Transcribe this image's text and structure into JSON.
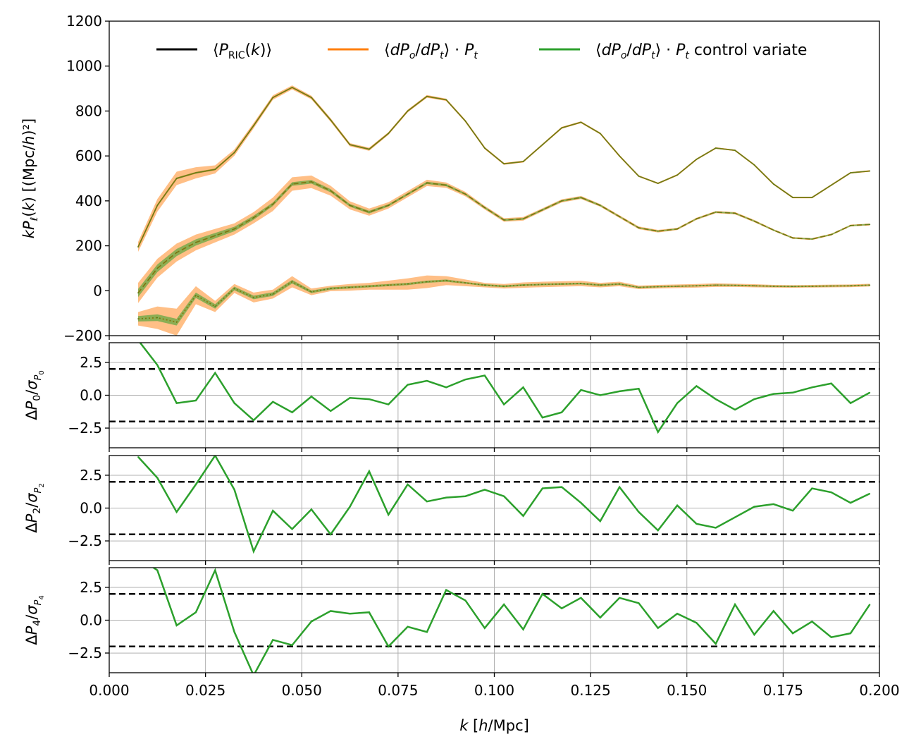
{
  "chart_data": [
    {
      "panel": "top",
      "type": "line",
      "ylabel_html": "kP<tspan font-style='italic' font-size='14' dy='4'>ℓ</tspan>",
      "ylabel": "kPℓ(k) [(Mpc/h)²]",
      "ylim": [
        -200,
        1200
      ],
      "yticks": [
        -200,
        0,
        200,
        400,
        600,
        800,
        1000,
        1200
      ],
      "xlim": [
        0.0,
        0.2
      ],
      "grid": false,
      "legend": {
        "location": "top",
        "entries": [
          {
            "label": "⟨P_RIC(k)⟩",
            "color": "#000000"
          },
          {
            "label": "⟨dP_o/dP_t⟩ · P_t",
            "color": "#ff7f0e"
          },
          {
            "label": "⟨dP_o/dP_t⟩ · P_t control variate",
            "color": "#2ca02c"
          }
        ]
      },
      "x": [
        0.0075,
        0.0125,
        0.0175,
        0.0225,
        0.0275,
        0.0325,
        0.0375,
        0.0425,
        0.0475,
        0.0525,
        0.0575,
        0.0625,
        0.0675,
        0.0725,
        0.0775,
        0.0825,
        0.0875,
        0.0925,
        0.0975,
        0.1025,
        0.1075,
        0.1125,
        0.1175,
        0.1225,
        0.1275,
        0.1325,
        0.1375,
        0.1425,
        0.1475,
        0.1525,
        0.1575,
        0.1625,
        0.1675,
        0.1725,
        0.1775,
        0.1825,
        0.1875,
        0.1925,
        0.1975
      ],
      "series": [
        {
          "name": "P0",
          "style": "solid",
          "values": [
            195,
            380,
            500,
            525,
            540,
            615,
            735,
            860,
            905,
            860,
            760,
            650,
            630,
            700,
            800,
            865,
            850,
            755,
            635,
            565,
            575,
            650,
            725,
            750,
            700,
            600,
            510,
            478,
            515,
            585,
            635,
            625,
            560,
            475,
            415,
            415,
            470,
            525,
            533
          ],
          "band_orange": [
            22,
            28,
            30,
            25,
            18,
            14,
            12,
            10,
            9,
            8,
            8,
            7,
            7,
            6,
            6,
            6,
            5,
            5,
            5,
            4,
            4,
            4,
            4,
            4,
            4,
            4,
            3,
            3,
            3,
            3,
            3,
            3,
            3,
            3,
            3,
            3,
            3,
            3,
            3
          ],
          "band_green": [
            5,
            5,
            4,
            4,
            4,
            3,
            3,
            3,
            3,
            3,
            3,
            3,
            3,
            3,
            3,
            2,
            2,
            2,
            2,
            2,
            2,
            2,
            2,
            2,
            2,
            2,
            2,
            2,
            2,
            2,
            2,
            2,
            2,
            2,
            2,
            2,
            2,
            2,
            2
          ]
        },
        {
          "name": "P2",
          "style": "dashed",
          "values": [
            -10,
            100,
            170,
            215,
            245,
            275,
            325,
            385,
            475,
            485,
            445,
            380,
            350,
            380,
            430,
            480,
            470,
            430,
            370,
            315,
            320,
            360,
            400,
            415,
            380,
            330,
            280,
            265,
            275,
            320,
            350,
            345,
            310,
            270,
            235,
            230,
            250,
            290,
            295
          ],
          "band_orange": [
            45,
            42,
            40,
            35,
            30,
            25,
            25,
            30,
            30,
            28,
            22,
            18,
            16,
            14,
            14,
            14,
            12,
            10,
            8,
            8,
            8,
            7,
            7,
            7,
            6,
            6,
            6,
            6,
            5,
            5,
            5,
            5,
            5,
            4,
            4,
            4,
            4,
            4,
            4
          ],
          "band_green": [
            18,
            17,
            16,
            14,
            12,
            10,
            9,
            8,
            8,
            8,
            7,
            6,
            6,
            5,
            5,
            5,
            5,
            4,
            4,
            4,
            4,
            4,
            4,
            4,
            4,
            3,
            3,
            3,
            3,
            3,
            3,
            3,
            3,
            3,
            3,
            3,
            3,
            3,
            3
          ]
        },
        {
          "name": "P4",
          "style": "dotted",
          "values": [
            -125,
            -120,
            -140,
            -20,
            -70,
            10,
            -30,
            -15,
            40,
            -5,
            10,
            15,
            20,
            25,
            30,
            40,
            45,
            35,
            25,
            20,
            25,
            28,
            30,
            32,
            25,
            30,
            15,
            18,
            20,
            22,
            25,
            24,
            22,
            20,
            19,
            20,
            21,
            22,
            25
          ],
          "band_orange": [
            30,
            50,
            60,
            40,
            25,
            20,
            22,
            20,
            25,
            15,
            12,
            15,
            15,
            20,
            25,
            28,
            20,
            15,
            10,
            10,
            12,
            12,
            12,
            12,
            10,
            10,
            8,
            8,
            8,
            8,
            8,
            7,
            7,
            6,
            6,
            6,
            6,
            6,
            6
          ],
          "band_green": [
            12,
            15,
            15,
            12,
            10,
            8,
            8,
            8,
            8,
            6,
            5,
            5,
            5,
            5,
            5,
            5,
            5,
            4,
            4,
            4,
            4,
            4,
            4,
            4,
            4,
            4,
            3,
            3,
            3,
            3,
            3,
            3,
            3,
            3,
            3,
            3,
            3,
            3,
            3
          ]
        }
      ]
    },
    {
      "panel": "dP0",
      "type": "line",
      "ylabel": "ΔP0/σP0",
      "sub": "0",
      "ylim": [
        -4,
        4
      ],
      "yticks": [
        -2.5,
        0.0,
        2.5
      ],
      "hlines": [
        2,
        -2
      ],
      "grid": true,
      "values": [
        4.2,
        2.3,
        -0.6,
        -0.4,
        1.7,
        -0.6,
        -1.9,
        -0.5,
        -1.3,
        -0.1,
        -1.2,
        -0.2,
        -0.3,
        -0.7,
        0.8,
        1.1,
        0.6,
        1.2,
        1.5,
        -0.7,
        0.6,
        -1.7,
        -1.3,
        0.4,
        0.0,
        0.3,
        0.5,
        -2.8,
        -0.6,
        0.7,
        -0.3,
        -1.1,
        -0.3,
        0.1,
        0.2,
        0.6,
        0.9,
        -0.6,
        0.2
      ]
    },
    {
      "panel": "dP2",
      "type": "line",
      "ylabel": "ΔP2/σP2",
      "sub": "2",
      "ylim": [
        -4,
        4
      ],
      "yticks": [
        -2.5,
        0.0,
        2.5
      ],
      "hlines": [
        2,
        -2
      ],
      "grid": true,
      "values": [
        3.9,
        2.3,
        -0.3,
        1.8,
        4.0,
        1.4,
        -3.3,
        -0.2,
        -1.6,
        -0.1,
        -2.0,
        0.1,
        2.8,
        -0.5,
        1.8,
        0.5,
        0.8,
        0.9,
        1.4,
        0.9,
        -0.6,
        1.5,
        1.6,
        0.4,
        -1.0,
        1.6,
        -0.3,
        -1.7,
        0.2,
        -1.2,
        -1.5,
        -0.7,
        0.1,
        0.3,
        -0.2,
        1.5,
        1.2,
        0.4,
        1.1
      ]
    },
    {
      "panel": "dP4",
      "type": "line",
      "ylabel": "ΔP4/σP4",
      "sub": "4",
      "ylim": [
        -4,
        4
      ],
      "yticks": [
        -2.5,
        0.0,
        2.5
      ],
      "hlines": [
        2,
        -2
      ],
      "grid": true,
      "xlabel": "k [h/Mpc]",
      "xticks": [
        "0.000",
        "0.025",
        "0.050",
        "0.075",
        "0.100",
        "0.125",
        "0.150",
        "0.175",
        "0.200"
      ],
      "values": [
        4.8,
        3.8,
        -0.4,
        0.6,
        3.8,
        -0.9,
        -4.2,
        -1.5,
        -1.9,
        -0.1,
        0.7,
        0.5,
        0.6,
        -2.0,
        -0.5,
        -0.9,
        2.3,
        1.5,
        -0.6,
        1.2,
        -0.7,
        2.0,
        0.9,
        1.7,
        0.2,
        1.7,
        1.3,
        -0.6,
        0.5,
        -0.2,
        -1.8,
        1.2,
        -1.1,
        0.7,
        -1.0,
        -0.1,
        -1.3,
        -1.0,
        1.2
      ]
    }
  ]
}
